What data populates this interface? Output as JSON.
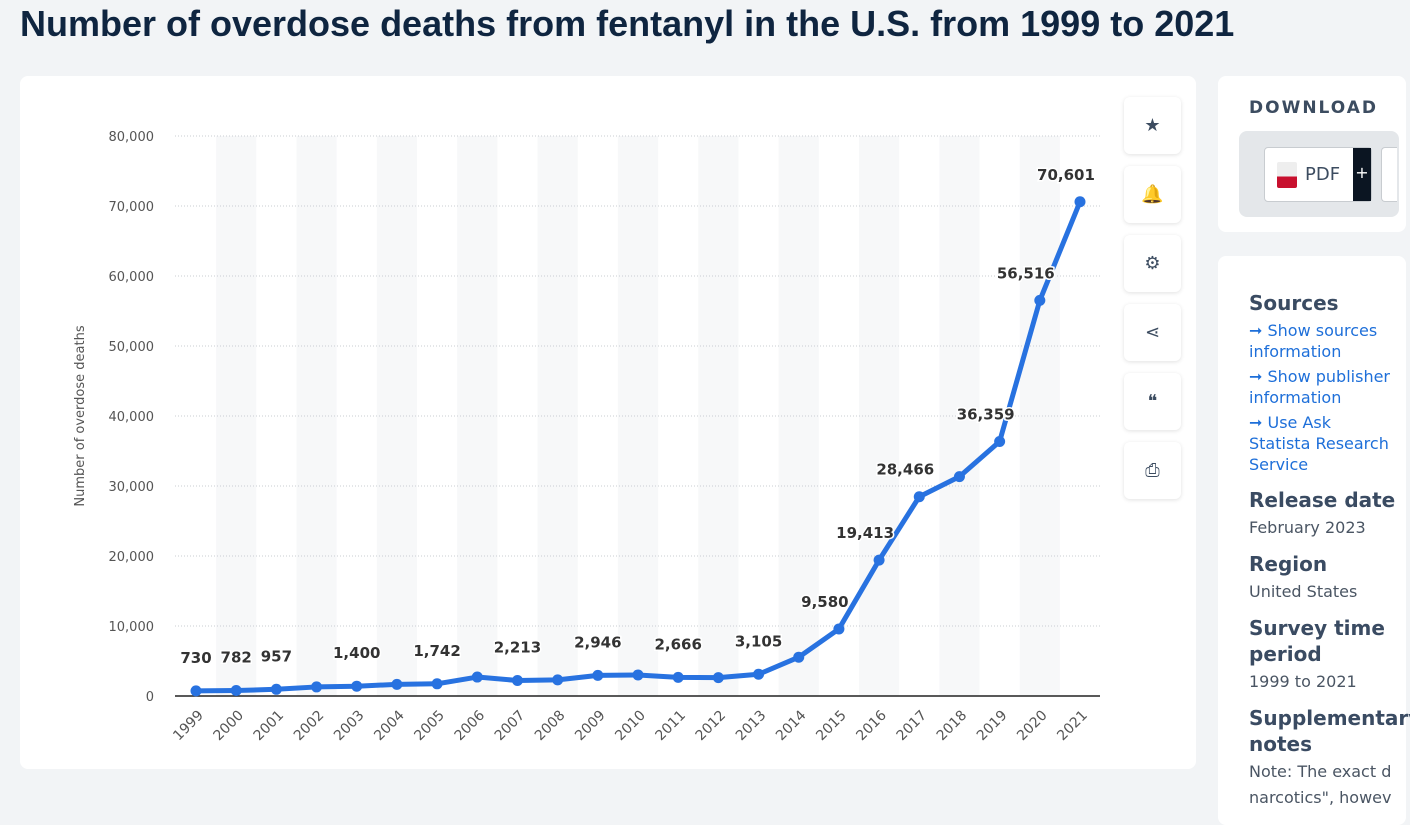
{
  "title": "Number of overdose deaths from fentanyl in the U.S. from 1999 to 2021",
  "tools": [
    {
      "icon": "star-icon",
      "glyph": "★"
    },
    {
      "icon": "bell-icon",
      "glyph": "🔔"
    },
    {
      "icon": "gear-icon",
      "glyph": "⚙"
    },
    {
      "icon": "share-icon",
      "glyph": "⋖"
    },
    {
      "icon": "quote-icon",
      "glyph": "❝"
    },
    {
      "icon": "print-icon",
      "glyph": "⎙"
    }
  ],
  "download": {
    "title": "DOWNLOAD",
    "pdf": "PDF",
    "plus": "+"
  },
  "info": {
    "sources_title": "Sources",
    "links": [
      "Show sources information",
      "Show publisher information",
      "Use Ask Statista Research Service"
    ],
    "release_title": "Release date",
    "release": "February 2023",
    "region_title": "Region",
    "region": "United States",
    "period_title": "Survey time period",
    "period": "1999 to 2021",
    "supp_title": "Supplementary notes",
    "supp": "Note: The exact d",
    "supp2": "narcotics\", howev"
  },
  "chart_data": {
    "type": "line",
    "ylabel": "Number of overdose deaths",
    "ylim": [
      0,
      80000
    ],
    "yticks": [
      "0",
      "10,000",
      "20,000",
      "30,000",
      "40,000",
      "50,000",
      "60,000",
      "70,000",
      "80,000"
    ],
    "grid": true,
    "color": "#2872e0",
    "categories": [
      "1999",
      "2000",
      "2001",
      "2002",
      "2003",
      "2004",
      "2005",
      "2006",
      "2007",
      "2008",
      "2009",
      "2010",
      "2011",
      "2012",
      "2013",
      "2014",
      "2015",
      "2016",
      "2017",
      "2018",
      "2019",
      "2020",
      "2021"
    ],
    "values": [
      730,
      782,
      957,
      1295,
      1400,
      1664,
      1742,
      2707,
      2213,
      2306,
      2946,
      3007,
      2666,
      2628,
      3105,
      5544,
      9580,
      19413,
      28466,
      31335,
      36359,
      56516,
      70601
    ],
    "data_labels": [
      "730",
      "782",
      "957",
      "",
      "1,400",
      "",
      "1,742",
      "",
      "2,213",
      "",
      "2,946",
      "",
      "2,666",
      "",
      "3,105",
      "",
      "9,580",
      "19,413",
      "28,466",
      "",
      "36,359",
      "56,516",
      "70,601"
    ]
  }
}
